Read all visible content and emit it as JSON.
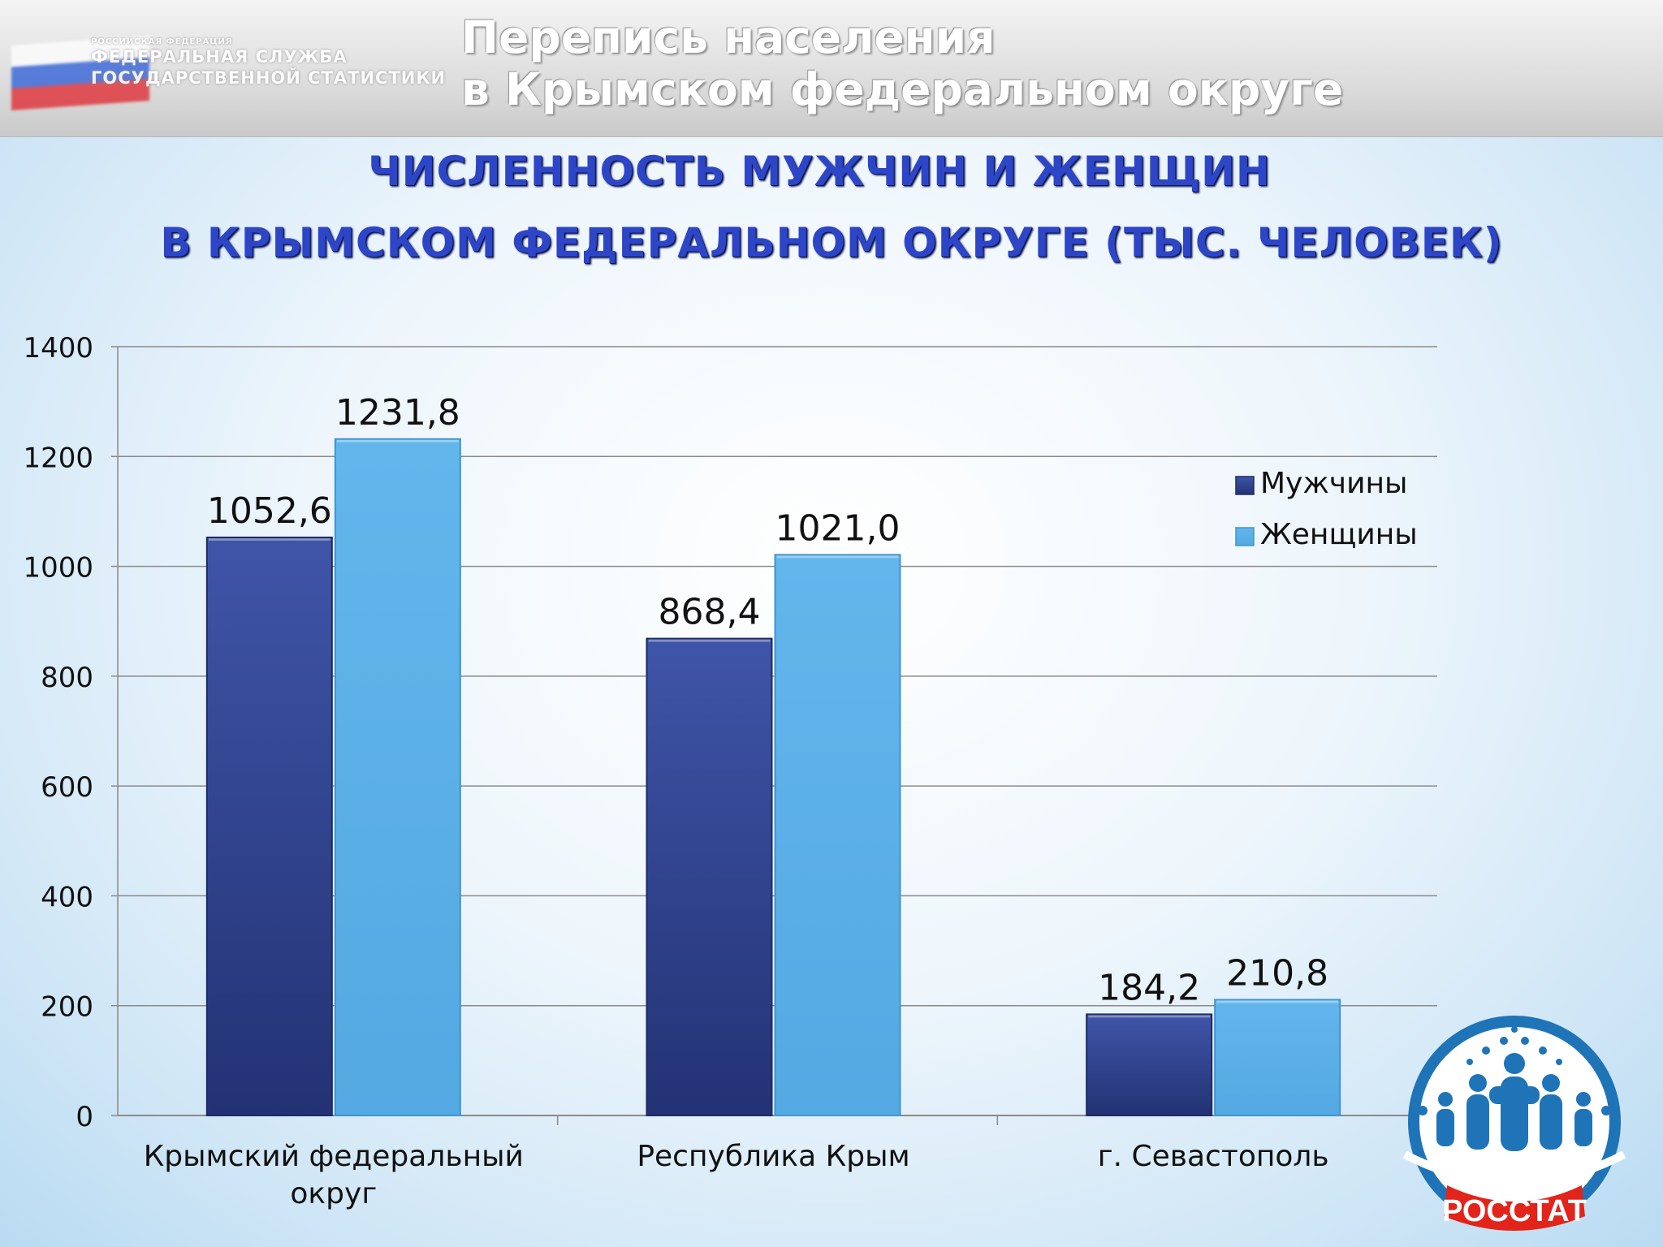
{
  "header": {
    "agency_small": "РОССИЙСКАЯ ФЕДЕРАЦИЯ",
    "agency_line1": "ФЕДЕРАЛЬНАЯ СЛУЖБА",
    "agency_line2": "ГОСУДАРСТВЕННОЙ СТАТИСТИКИ",
    "title_line1": "Перепись населения",
    "title_line2": "в Крымском федеральном округе"
  },
  "chart_data": {
    "type": "bar",
    "title_line1": "ЧИСЛЕННОСТЬ МУЖЧИН И ЖЕНЩИН",
    "title_line2": "В КРЫМСКОМ ФЕДЕРАЛЬНОМ ОКРУГЕ  (ТЫС. ЧЕЛОВЕК)",
    "categories": [
      [
        "Крымский федеральный",
        "округ"
      ],
      [
        "Республика Крым"
      ],
      [
        "г. Севастополь"
      ]
    ],
    "series": [
      {
        "name": "Мужчины",
        "values": [
          1052.6,
          868.4,
          184.2
        ],
        "labels": [
          "1052,6",
          "868,4",
          "184,2"
        ]
      },
      {
        "name": "Женщины",
        "values": [
          1231.8,
          1021.0,
          210.8
        ],
        "labels": [
          "1231,8",
          "1021,0",
          "210,8"
        ]
      }
    ],
    "ylim": [
      0,
      1400
    ],
    "yticks": [
      0,
      200,
      400,
      600,
      800,
      1000,
      1200,
      1400
    ],
    "grid": true,
    "legend_position": "right",
    "colors": {
      "Мужчины": "#2d3f94",
      "Женщины": "#5fb3ea"
    }
  },
  "logo": {
    "text": "РОССТАТ",
    "name": "rosstat-logo-icon"
  }
}
